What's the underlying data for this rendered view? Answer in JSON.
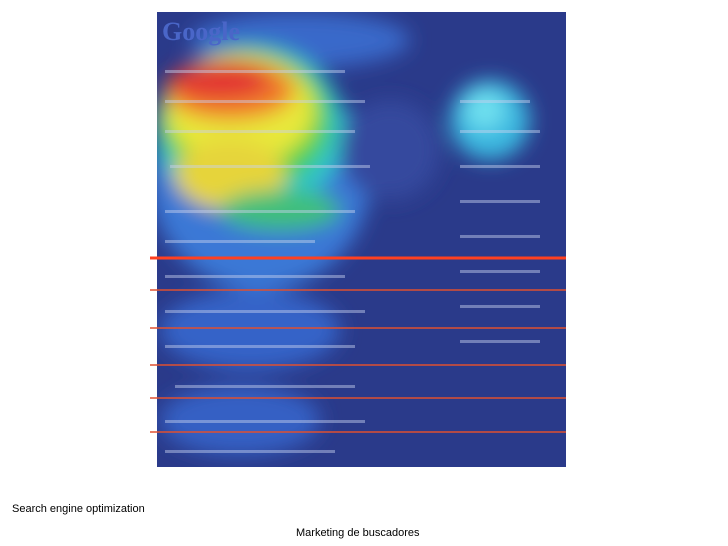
{
  "slide": {
    "logo": "Google",
    "caption_left": "Search engine optimization",
    "caption_center": "Marketing de buscadores"
  }
}
